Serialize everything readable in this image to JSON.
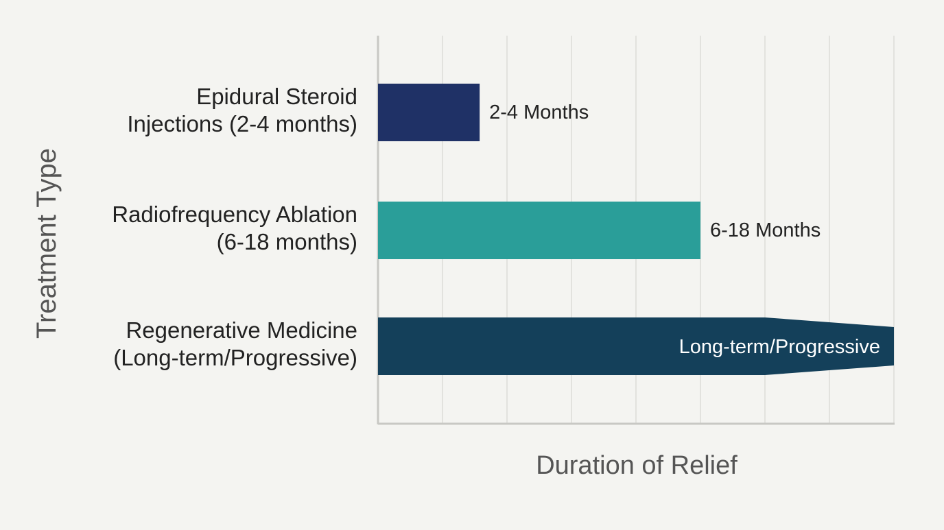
{
  "colors": {
    "background": "#f4f4f1",
    "grid": "#dcdcd8",
    "axis": "#c8c8c4",
    "label_text": "#222222",
    "axis_title_text": "#555555",
    "inside_label_text": "#ffffff"
  },
  "chart_data": {
    "type": "bar",
    "orientation": "horizontal",
    "title": "",
    "xlabel": "Duration of Relief",
    "ylabel": "Treatment Type",
    "x_ticks_shown": false,
    "x_gridlines": 8,
    "grid": true,
    "legend": "none",
    "categories": [
      {
        "lines": [
          "Epidural Steroid",
          "Injections (2-4 months)"
        ],
        "value_label": "2-4 Months",
        "relative_length": 0.197,
        "color": "#1f3166",
        "open_ended": false
      },
      {
        "lines": [
          "Radiofrequency Ablation",
          "(6-18 months)"
        ],
        "value_label": "6-18 Months",
        "relative_length": 0.625,
        "color": "#2a9e99",
        "open_ended": false
      },
      {
        "lines": [
          "Regenerative Medicine",
          "(Long-term/Progressive)"
        ],
        "value_label": "Long-term/Progressive",
        "relative_length": 1.0,
        "color": "#14405a",
        "open_ended": true
      }
    ]
  }
}
